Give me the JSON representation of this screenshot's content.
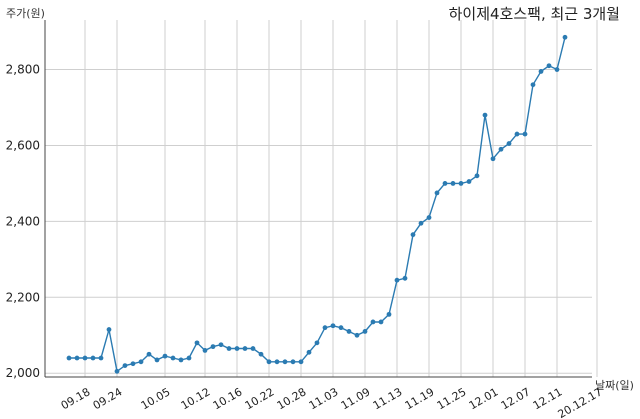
{
  "chart_data": {
    "type": "line",
    "title": "하이제4호스팩, 최근 3개월",
    "ylabel": "주가(원)",
    "xlabel": "날짜(일)",
    "ylim": [
      1990,
      2920
    ],
    "yticks": [
      2000,
      2200,
      2400,
      2600,
      2800
    ],
    "ytick_labels": [
      "2,000",
      "2,200",
      "2,400",
      "2,600",
      "2,800"
    ],
    "xtick_labels": [
      "09.18",
      "09.24",
      "10.05",
      "10.12",
      "10.16",
      "10.22",
      "10.28",
      "11.03",
      "11.09",
      "11.13",
      "11.19",
      "11.25",
      "12.01",
      "12.07",
      "12.11",
      "20.12.17"
    ],
    "xtick_indices": [
      2,
      6,
      12,
      17,
      21,
      25,
      29,
      33,
      37,
      41,
      45,
      49,
      53,
      57,
      61,
      66
    ],
    "grid": true,
    "color": "#2b7bb2",
    "series": [
      {
        "values": [
          2040,
          2040,
          2040,
          2040,
          2040,
          2115,
          2005,
          2020,
          2025,
          2030,
          2050,
          2035,
          2045,
          2040,
          2035,
          2040,
          2080,
          2060,
          2070,
          2075,
          2065,
          2065,
          2065,
          2065,
          2050,
          2030,
          2030,
          2030,
          2030,
          2030,
          2055,
          2080,
          2120,
          2125,
          2120,
          2110,
          2100,
          2110,
          2135,
          2135,
          2155,
          2245,
          2250,
          2365,
          2395,
          2410,
          2475,
          2500,
          2500,
          2500,
          2505,
          2520,
          2680,
          2565,
          2590,
          2605,
          2630,
          2630,
          2760,
          2795,
          2810,
          2800,
          2885
        ]
      }
    ]
  }
}
